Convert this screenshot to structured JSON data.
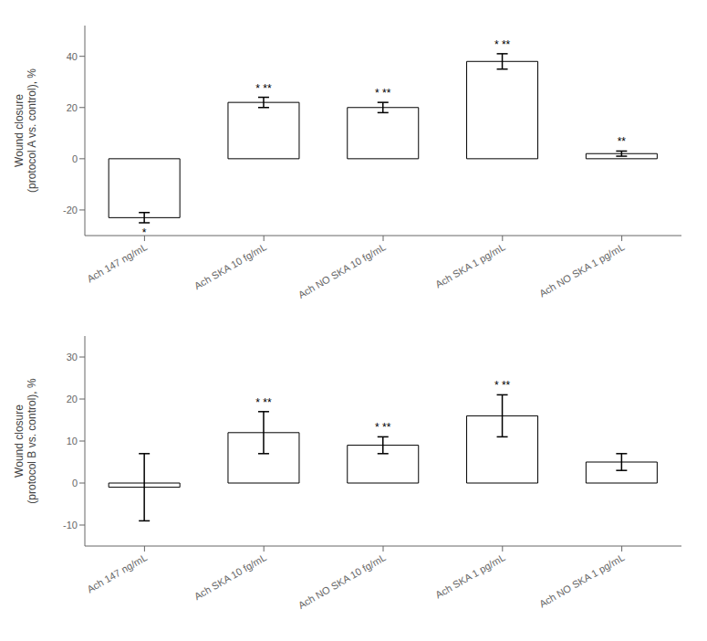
{
  "chart_data": [
    {
      "type": "bar",
      "categories": [
        "Ach 147 ng/mL",
        "Ach SKA 10 fg/mL",
        "Ach NO SKA 10 fg/mL",
        "Ach SKA 1 pg/mL",
        "Ach NO SKA 1 pg/mL"
      ],
      "values": [
        -23,
        22,
        20,
        38,
        2
      ],
      "errors": [
        2,
        2,
        2,
        3,
        1
      ],
      "annotations": [
        "*",
        "* **",
        "* **",
        "* **",
        "**"
      ],
      "ylabel": "Wound closure\n(protocol A vs. control), %",
      "ylim": [
        -30,
        52
      ],
      "yticks": [
        -20,
        0,
        20,
        40
      ],
      "color": "#ffffff",
      "grid": false
    },
    {
      "type": "bar",
      "categories": [
        "Ach 147 ng/mL",
        "Ach SKA 10 fg/mL",
        "Ach NO SKA 10 fg/mL",
        "Ach SKA 1 pg/mL",
        "Ach NO SKA 1 pg/mL"
      ],
      "values": [
        -1,
        12,
        9,
        16,
        5
      ],
      "errors": [
        8,
        5,
        2,
        5,
        2
      ],
      "annotations": [
        null,
        "* **",
        "* **",
        "* **",
        null
      ],
      "ylabel": "Wound closure\n(protocol B vs. control), %",
      "ylim": [
        -15,
        35
      ],
      "yticks": [
        -10,
        0,
        10,
        20,
        30
      ],
      "color": "#ffffff",
      "grid": false
    }
  ]
}
